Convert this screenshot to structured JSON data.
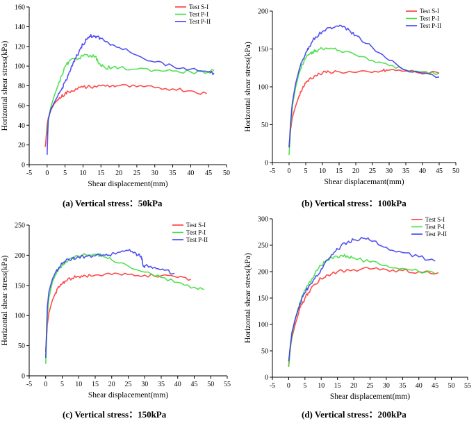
{
  "chart_data": [
    {
      "type": "line",
      "panel_id": "a",
      "title": "",
      "caption": "(a) Vertical stress：50kPa",
      "xlabel": "Shear displacement(mm)",
      "ylabel": "Horizontal shear stress(kPa)",
      "xlim": [
        -5,
        50
      ],
      "ylim": [
        0,
        160
      ],
      "xticks": [
        -5,
        0,
        5,
        10,
        15,
        20,
        25,
        30,
        35,
        40,
        45,
        50
      ],
      "yticks": [
        0,
        20,
        40,
        60,
        80,
        100,
        120,
        140,
        160
      ],
      "legend_position": "top-right",
      "series": [
        {
          "name": "Test S-I",
          "color": "#ff2a2a",
          "x": [
            -0.5,
            0,
            0.3,
            1,
            2,
            3,
            4,
            5,
            6,
            8,
            10,
            12,
            15,
            18,
            20,
            25,
            30,
            35,
            40,
            44.5
          ],
          "y": [
            18,
            40,
            47,
            55,
            62,
            66,
            69,
            72,
            74,
            77,
            78.5,
            79,
            80,
            80,
            80,
            79,
            78,
            77,
            75,
            72
          ]
        },
        {
          "name": "Test P-I",
          "color": "#33dd33",
          "x": [
            0,
            0.3,
            1,
            2,
            3,
            4,
            5,
            6,
            8,
            10,
            12,
            13,
            14,
            15,
            16,
            18,
            20,
            25,
            30,
            35,
            40,
            45,
            46.5
          ],
          "y": [
            30,
            45,
            58,
            70,
            80,
            90,
            99,
            104,
            108,
            110,
            111,
            110,
            107,
            100,
            99,
            98,
            98,
            97,
            96,
            95,
            94,
            94,
            95
          ]
        },
        {
          "name": "Test P-II",
          "color": "#3333ee",
          "x": [
            0,
            0.3,
            1,
            2,
            3,
            4,
            5,
            6,
            7,
            8,
            9,
            10,
            11,
            12,
            13,
            14,
            15,
            17,
            20,
            25,
            30,
            35,
            40,
            45,
            46.5
          ],
          "y": [
            10,
            45,
            56,
            63,
            70,
            76,
            84,
            92,
            100,
            108,
            116,
            122,
            127,
            130,
            131,
            130,
            128,
            124,
            119,
            111,
            104,
            100,
            97,
            94,
            93
          ]
        }
      ]
    },
    {
      "type": "line",
      "panel_id": "b",
      "title": "",
      "caption": "(b) Vertical stress：100kPa",
      "xlabel": "Shear displacemant(mm)",
      "ylabel": "Horizontal shear stress(kPa)",
      "xlim": [
        -5,
        50
      ],
      "ylim": [
        0,
        200
      ],
      "xticks": [
        -5,
        0,
        5,
        10,
        15,
        20,
        25,
        30,
        35,
        40,
        45,
        50
      ],
      "yticks": [
        0,
        50,
        100,
        150,
        200
      ],
      "legend_position": "top-right",
      "series": [
        {
          "name": "Test S-I",
          "color": "#ff2a2a",
          "x": [
            0,
            0.5,
            1,
            2,
            3,
            4,
            5,
            6,
            8,
            10,
            12,
            15,
            20,
            25,
            28,
            30,
            35,
            40,
            45
          ],
          "y": [
            20,
            45,
            60,
            75,
            88,
            98,
            105,
            110,
            115,
            118,
            120,
            120,
            119,
            119,
            121,
            122,
            121,
            119,
            118
          ]
        },
        {
          "name": "Test P-I",
          "color": "#33dd33",
          "x": [
            0,
            0.5,
            1,
            2,
            3,
            4,
            5,
            6,
            7,
            8,
            10,
            12,
            15,
            20,
            25,
            30,
            35,
            40,
            45
          ],
          "y": [
            10,
            50,
            75,
            100,
            118,
            130,
            138,
            143,
            146,
            148,
            150,
            150,
            148,
            142,
            135,
            128,
            122,
            120,
            118
          ]
        },
        {
          "name": "Test P-II",
          "color": "#3333ee",
          "x": [
            0,
            0.5,
            1,
            2,
            3,
            4,
            5,
            6,
            7,
            8,
            10,
            12,
            14,
            16,
            18,
            20,
            25,
            30,
            35,
            40,
            45
          ],
          "y": [
            20,
            55,
            80,
            105,
            122,
            135,
            145,
            153,
            160,
            166,
            173,
            178,
            180,
            179,
            175,
            168,
            152,
            135,
            122,
            117,
            113
          ]
        }
      ]
    },
    {
      "type": "line",
      "panel_id": "c",
      "title": "",
      "caption": "(c) Vertical stress：150kPa",
      "xlabel": "Shear displacement(mm)",
      "ylabel": "Horizontal shear stress(kPa)",
      "xlim": [
        -5,
        55
      ],
      "ylim": [
        0,
        250
      ],
      "xticks": [
        -5,
        0,
        5,
        10,
        15,
        20,
        25,
        30,
        35,
        40,
        45,
        50,
        55
      ],
      "yticks": [
        0,
        50,
        100,
        150,
        200,
        250
      ],
      "legend_position": "top-right",
      "series": [
        {
          "name": "Test S-I",
          "color": "#ff2a2a",
          "x": [
            0,
            0.5,
            1,
            2,
            3,
            4,
            5,
            6,
            8,
            10,
            12,
            15,
            20,
            25,
            30,
            35,
            40,
            44
          ],
          "y": [
            40,
            85,
            105,
            125,
            138,
            147,
            153,
            157,
            162,
            165,
            166,
            167,
            168,
            168,
            167,
            166,
            163,
            160
          ]
        },
        {
          "name": "Test P-I",
          "color": "#33dd33",
          "x": [
            0,
            0.5,
            1,
            2,
            3,
            4,
            5,
            6,
            8,
            10,
            12,
            15,
            17,
            20,
            25,
            30,
            35,
            40,
            45,
            48
          ],
          "y": [
            20,
            100,
            130,
            155,
            168,
            177,
            184,
            189,
            196,
            199,
            201,
            202,
            200,
            192,
            182,
            172,
            163,
            155,
            147,
            143
          ]
        },
        {
          "name": "Test P-II",
          "color": "#3333ee",
          "x": [
            0,
            0.5,
            1,
            2,
            3,
            4,
            5,
            6,
            8,
            10,
            12,
            15,
            18,
            20,
            22,
            25,
            27,
            28,
            29,
            29.5,
            30,
            33,
            36,
            39
          ],
          "y": [
            30,
            115,
            140,
            160,
            172,
            180,
            186,
            190,
            195,
            197,
            198,
            199,
            200,
            202,
            205,
            208,
            205,
            200,
            198,
            183,
            182,
            180,
            175,
            170
          ]
        }
      ]
    },
    {
      "type": "line",
      "panel_id": "d",
      "title": "",
      "caption": "(d) Vertical stress：200kPa",
      "xlabel": "Shear displacement(mm)",
      "ylabel": "Horizontal shear stress(kPa)",
      "xlim": [
        -5,
        55
      ],
      "ylim": [
        0,
        300
      ],
      "xticks": [
        -5,
        0,
        5,
        10,
        15,
        20,
        25,
        30,
        35,
        40,
        45,
        50,
        55
      ],
      "yticks": [
        0,
        50,
        100,
        150,
        200,
        250,
        300
      ],
      "legend_position": "top-right",
      "series": [
        {
          "name": "Test S-I",
          "color": "#ff2a2a",
          "x": [
            0,
            0.5,
            1,
            2,
            3,
            4,
            5,
            6,
            8,
            10,
            12,
            15,
            20,
            25,
            30,
            35,
            40,
            46
          ],
          "y": [
            20,
            55,
            75,
            100,
            120,
            138,
            150,
            160,
            176,
            187,
            194,
            200,
            204,
            205,
            204,
            202,
            200,
            198
          ]
        },
        {
          "name": "Test P-I",
          "color": "#33dd33",
          "x": [
            0,
            0.5,
            1,
            2,
            3,
            4,
            5,
            6,
            8,
            10,
            12,
            14,
            16,
            18,
            20,
            25,
            30,
            35,
            40,
            45
          ],
          "y": [
            20,
            55,
            80,
            110,
            132,
            150,
            165,
            175,
            195,
            212,
            222,
            228,
            231,
            230,
            226,
            218,
            212,
            206,
            200,
            196
          ]
        },
        {
          "name": "Test P-II",
          "color": "#3333ee",
          "x": [
            0,
            0.5,
            1,
            2,
            3,
            4,
            5,
            6,
            8,
            10,
            12,
            14,
            16,
            18,
            20,
            22,
            24,
            26,
            30,
            35,
            40,
            45
          ],
          "y": [
            30,
            60,
            85,
            110,
            130,
            148,
            160,
            170,
            187,
            205,
            222,
            237,
            248,
            255,
            260,
            262,
            262,
            258,
            246,
            236,
            228,
            220
          ]
        }
      ]
    }
  ]
}
